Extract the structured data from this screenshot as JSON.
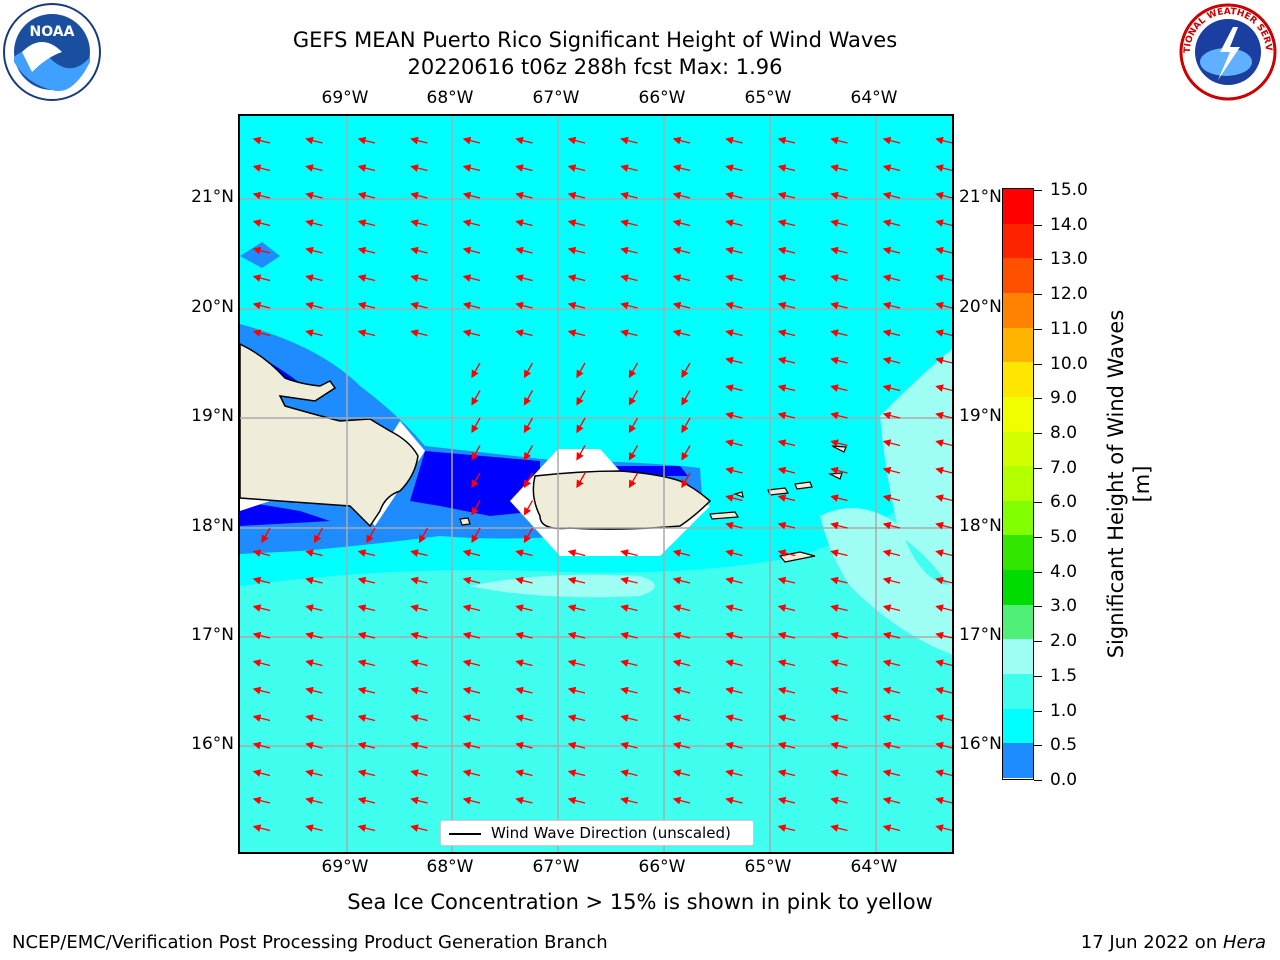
{
  "title": {
    "line1": "GEFS MEAN Puerto Rico Significant Height of Wind Waves",
    "line2": "20220616 t06z 288h fcst   Max: 1.96"
  },
  "map": {
    "lon_labels": [
      "69°W",
      "68°W",
      "67°W",
      "66°W",
      "65°W",
      "64°W"
    ],
    "lat_labels": [
      "21°N",
      "20°N",
      "19°N",
      "18°N",
      "17°N",
      "16°N"
    ],
    "legend_label": "Wind Wave Direction (unscaled)",
    "colors": {
      "ocean_main": "#00ffff",
      "ocean_light": "#40ffef",
      "ocean_pale": "#a0fff5",
      "shallow_blue": "#1e8cff",
      "deep_blue": "#0000ff",
      "land": "#efedd9",
      "arrow": "#ff0000",
      "grid": "#aaaaaa"
    }
  },
  "colorbar": {
    "title": "Significant Height of Wind Waves [m]",
    "tick_labels": [
      "15.0",
      "14.0",
      "13.0",
      "12.0",
      "11.0",
      "10.0",
      "9.0",
      "8.0",
      "7.0",
      "6.0",
      "5.0",
      "4.0",
      "3.0",
      "2.0",
      "1.5",
      "1.0",
      "0.5",
      "0.0"
    ],
    "segment_colors": [
      "#ff0000",
      "#ff2400",
      "#ff5000",
      "#ff8200",
      "#ffb400",
      "#ffe600",
      "#f0ff00",
      "#d2ff00",
      "#b4ff00",
      "#82ff00",
      "#32e600",
      "#00dc00",
      "#50f078",
      "#a0fff5",
      "#40ffef",
      "#00ffff",
      "#1e8cff",
      "#0000ff"
    ]
  },
  "footer": {
    "sea_ice_note": "Sea Ice Concentration > 15% is shown in pink to yellow",
    "left": "NCEP/EMC/Verification Post Processing Product Generation Branch",
    "date": "17 Jun 2022 on ",
    "host": "Hera"
  },
  "logos": {
    "noaa_text": "NOAA",
    "nws_text": "NATIONAL WEATHER SERVICE"
  }
}
